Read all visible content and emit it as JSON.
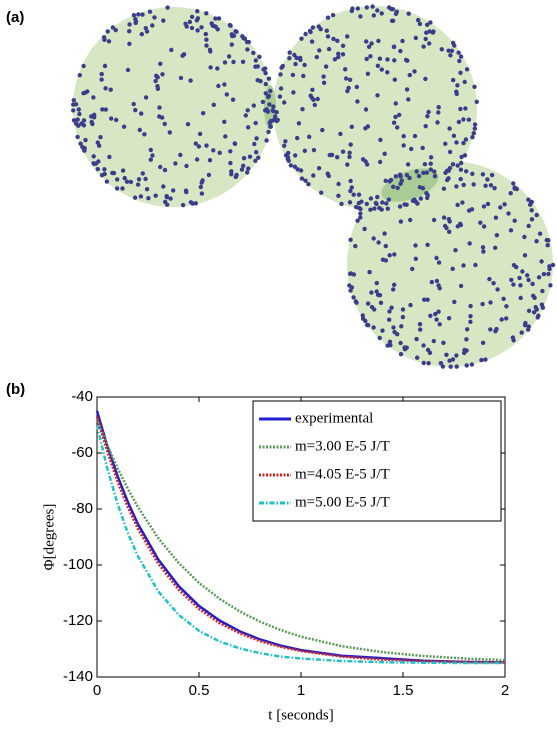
{
  "panel_a": {
    "label": "(a)"
  },
  "chart_data": {
    "type": "line",
    "panel_label": "(b)",
    "x_label": "t [seconds]",
    "y_label": "Φ[degrees]",
    "x": [
      0,
      0.05,
      0.1,
      0.15,
      0.2,
      0.3,
      0.4,
      0.5,
      0.6,
      0.7,
      0.8,
      0.9,
      1.0,
      1.2,
      1.4,
      1.6,
      1.8,
      2.0
    ],
    "series": [
      {
        "name": "experimental",
        "color": "#1f1fd0",
        "style": "solid",
        "values": [
          -45,
          -57.4,
          -68.1,
          -77.3,
          -85.3,
          -98.0,
          -107.5,
          -114.6,
          -119.8,
          -123.7,
          -126.6,
          -128.8,
          -130.4,
          -132.4,
          -133.3,
          -134.2,
          -134.6,
          -134.8
        ]
      },
      {
        "name": "m=3.00 E-5 J/T",
        "color": "#5a9a5a",
        "style": "dotted",
        "values": [
          -48,
          -57.1,
          -65.3,
          -72.6,
          -79.2,
          -90.4,
          -99.2,
          -106.4,
          -112,
          -116.6,
          -120.3,
          -123.2,
          -125.6,
          -129,
          -131.1,
          -132.5,
          -133.4,
          -134.0
        ]
      },
      {
        "name": "m=4.05 E-5 J/T",
        "color": "#d42020",
        "style": "dotted",
        "values": [
          -47,
          -59.4,
          -70,
          -79.1,
          -87,
          -99.5,
          -108.8,
          -115.7,
          -120.7,
          -124.4,
          -127.2,
          -129.2,
          -130.7,
          -132.7,
          -133.8,
          -134.3,
          -134.6,
          -134.8
        ]
      },
      {
        "name": "m=5.00 E-5 J/T",
        "color": "#20c0c8",
        "style": "dashdot",
        "values": [
          -50,
          -65.4,
          -78,
          -88.4,
          -96.8,
          -109.4,
          -117.8,
          -123.5,
          -127.3,
          -129.8,
          -131.5,
          -132.7,
          -133.4,
          -134.3,
          -134.7,
          -134.9,
          -135,
          -135
        ]
      }
    ],
    "xlim": [
      0,
      2
    ],
    "xticks": [
      0,
      0.5,
      1,
      1.5,
      2
    ],
    "ylim": [
      -140,
      -40
    ],
    "yticks": [
      -140,
      -120,
      -100,
      -80,
      -60,
      -40
    ],
    "grid": false,
    "legend": "top-right"
  }
}
